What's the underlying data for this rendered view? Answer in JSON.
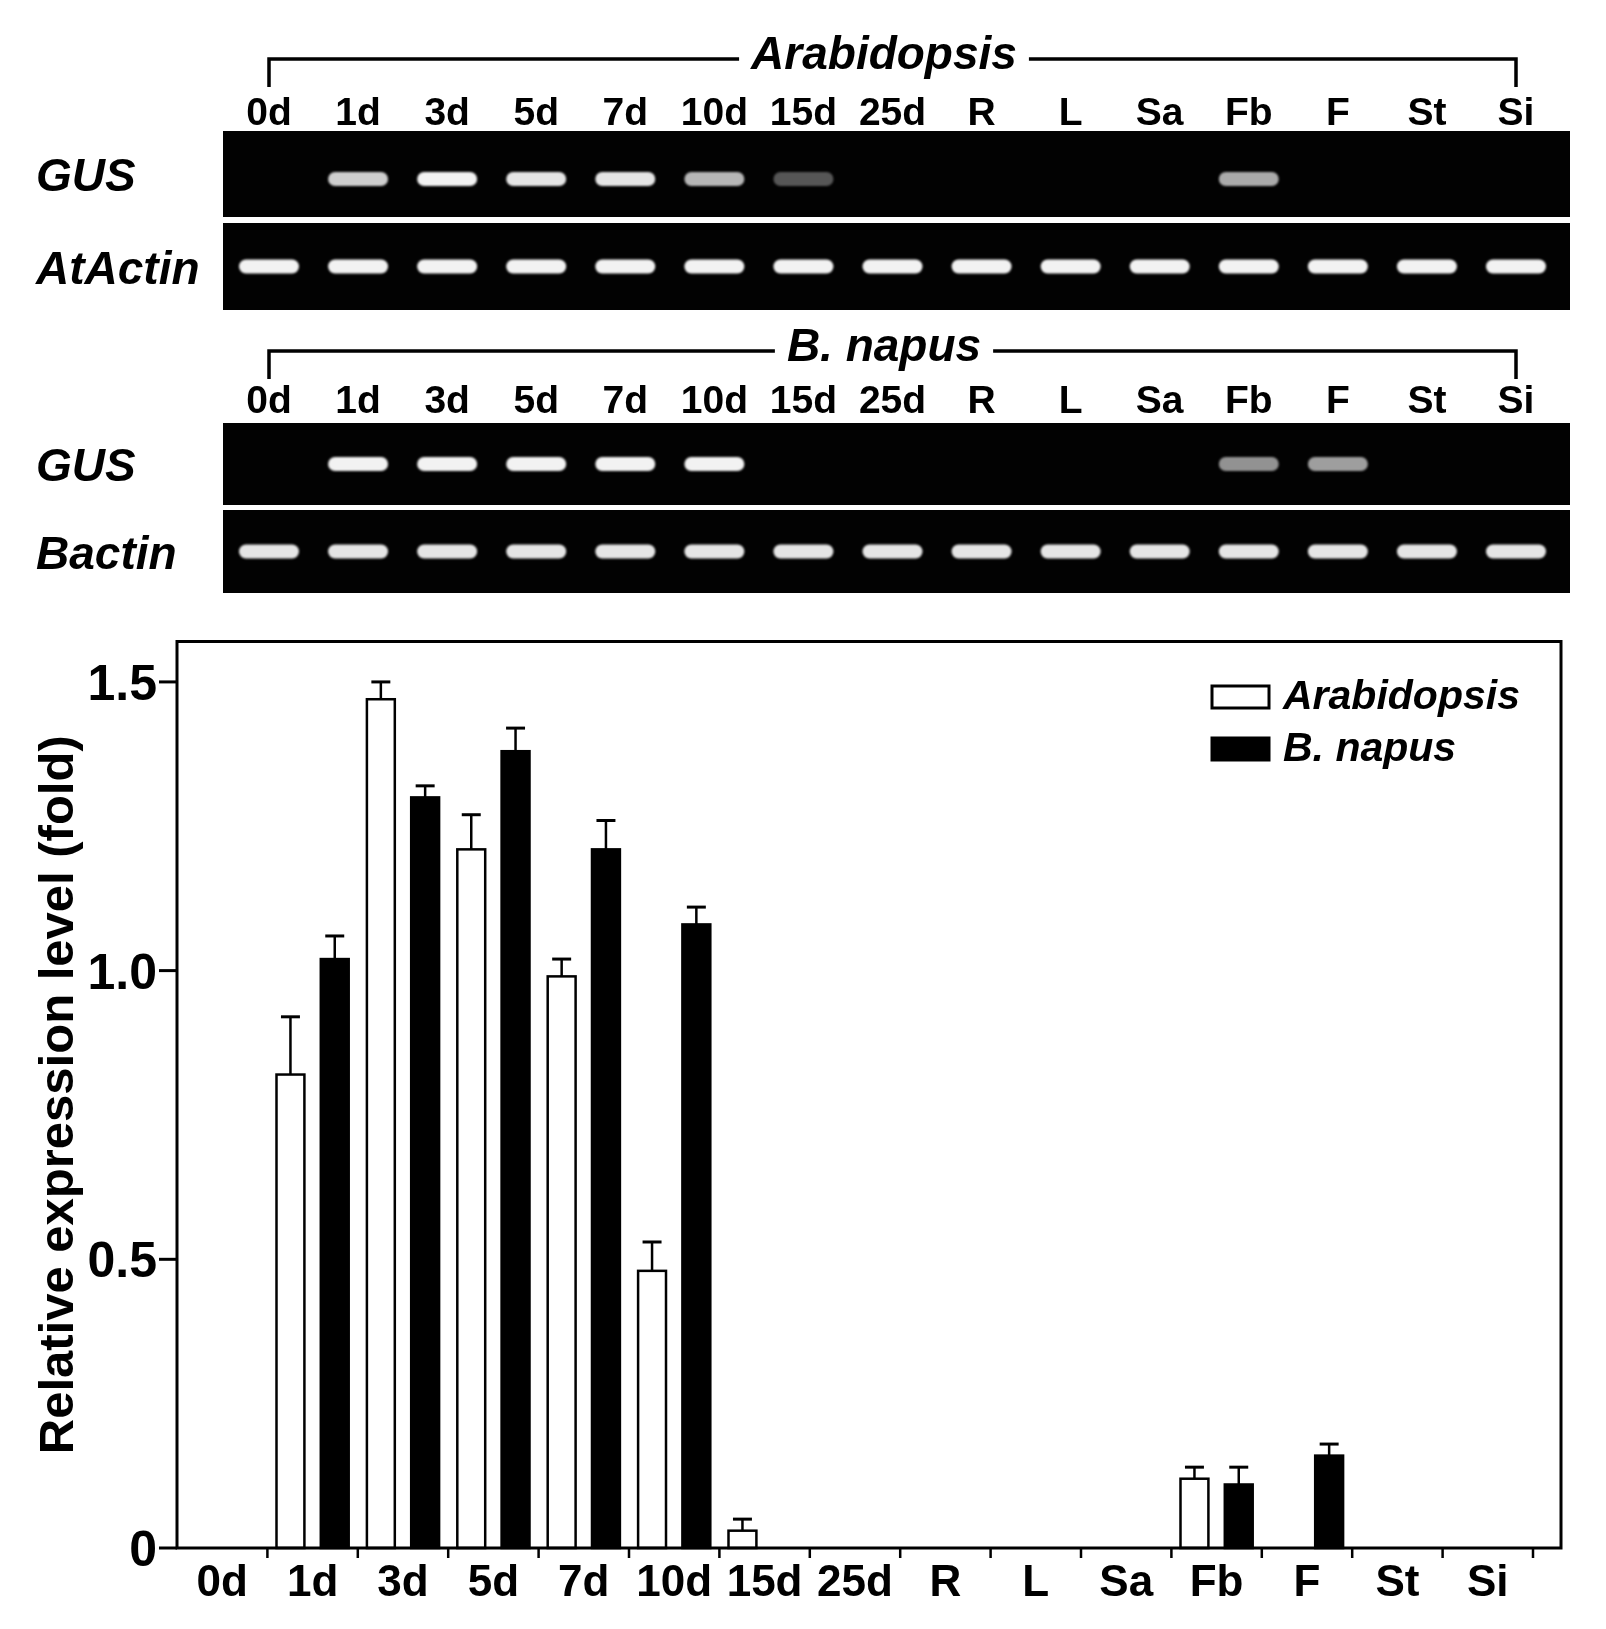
{
  "chart_data": [
    {
      "type": "heatmap",
      "title": "Arabidopsis",
      "categories": [
        "0d",
        "1d",
        "3d",
        "5d",
        "7d",
        "10d",
        "15d",
        "25d",
        "R",
        "L",
        "Sa",
        "Fb",
        "F",
        "St",
        "Si"
      ],
      "y_categories": [
        "GUS",
        "AtActin"
      ],
      "cells": [
        [
          null,
          null,
          null,
          null,
          null,
          null,
          null,
          null,
          null,
          null,
          null,
          null,
          null,
          null,
          null
        ],
        [
          null,
          null,
          null,
          null,
          null,
          null,
          null,
          null,
          null,
          null,
          null,
          null,
          null,
          null,
          null
        ]
      ]
    },
    {
      "type": "heatmap",
      "title": "B. napus",
      "categories": [
        "0d",
        "1d",
        "3d",
        "5d",
        "7d",
        "10d",
        "15d",
        "25d",
        "R",
        "L",
        "Sa",
        "Fb",
        "F",
        "St",
        "Si"
      ],
      "y_categories": [
        "GUS",
        "Bactin"
      ],
      "cells": [
        [
          null,
          null,
          null,
          null,
          null,
          null,
          null,
          null,
          null,
          null,
          null,
          null,
          null,
          null,
          null
        ],
        [
          null,
          null,
          null,
          null,
          null,
          null,
          null,
          null,
          null,
          null,
          null,
          null,
          null,
          null,
          null
        ]
      ]
    },
    {
      "type": "bar",
      "ylabel": "Relative expression level (fold)",
      "categories": [
        "0d",
        "1d",
        "3d",
        "5d",
        "7d",
        "10d",
        "15d",
        "25d",
        "R",
        "L",
        "Sa",
        "Fb",
        "F",
        "St",
        "Si"
      ],
      "series": [
        {
          "name": "Arabidopsis",
          "color": "#ffffff",
          "values": [
            null,
            0.82,
            1.47,
            1.21,
            0.99,
            0.48,
            0.03,
            null,
            null,
            null,
            null,
            0.12,
            null,
            null,
            null
          ],
          "errors": [
            null,
            [
              0.82,
              0.92
            ],
            [
              1.47,
              1.5
            ],
            [
              1.21,
              1.27
            ],
            [
              0.99,
              1.02
            ],
            [
              0.48,
              0.53
            ],
            [
              0.03,
              0.05
            ],
            null,
            null,
            null,
            null,
            [
              0.12,
              0.14
            ],
            null,
            null,
            null
          ]
        },
        {
          "name": "B. napus",
          "color": "#000000",
          "values": [
            null,
            1.02,
            1.3,
            1.38,
            1.21,
            1.08,
            null,
            null,
            null,
            null,
            null,
            0.11,
            0.16,
            null,
            null
          ],
          "errors": [
            null,
            [
              1.02,
              1.06
            ],
            [
              1.3,
              1.32
            ],
            [
              1.38,
              1.42
            ],
            [
              1.21,
              1.26
            ],
            [
              1.08,
              1.11
            ],
            null,
            null,
            null,
            null,
            null,
            [
              0.11,
              0.14
            ],
            [
              0.16,
              0.18
            ],
            null,
            null
          ]
        }
      ],
      "ylim": [
        0,
        1.57
      ],
      "yticks": [
        0,
        0.5,
        {
          "value": 1,
          "label": "1.0"
        },
        1.5
      ],
      "legend": "top right"
    }
  ]
}
